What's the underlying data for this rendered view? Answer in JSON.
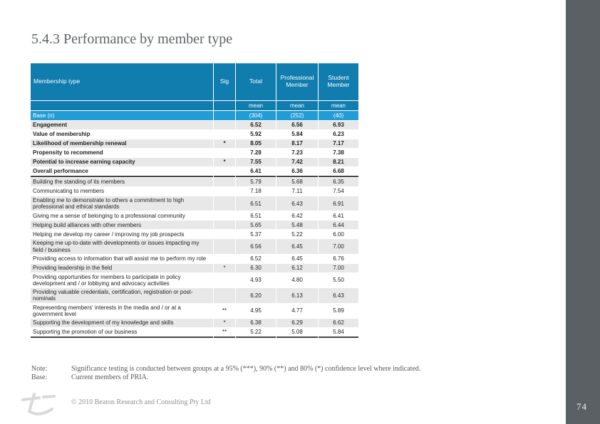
{
  "title": "5.4.3 Performance by member type",
  "colors": {
    "header_blue": "#107dae",
    "base_row_blue": "#229cd5",
    "stripe_gray": "#e8e8e8",
    "sidebar_gray": "#5b6065",
    "section_rule": "#454545"
  },
  "table": {
    "columns": [
      "Membership type",
      "Sig",
      "Total",
      "Professional Member",
      "Student Member"
    ],
    "mean_labels": [
      "mean",
      "mean",
      "mean"
    ],
    "base_row": {
      "label": "Base (n)",
      "values": [
        "(304)",
        "(252)",
        "(40)"
      ]
    },
    "rows": [
      {
        "label": "Engagement",
        "sig": "",
        "total": "6.52",
        "professional": "6.56",
        "student": "6.93",
        "group": "summary",
        "section_end": false
      },
      {
        "label": "Value of membership",
        "sig": "",
        "total": "5.92",
        "professional": "5.84",
        "student": "6.23",
        "group": "summary",
        "section_end": false
      },
      {
        "label": "Likelihood of membership renewal",
        "sig": "*",
        "total": "8.05",
        "professional": "8.17",
        "student": "7.17",
        "group": "summary",
        "section_end": false
      },
      {
        "label": "Propensity to recommend",
        "sig": "",
        "total": "7.28",
        "professional": "7.23",
        "student": "7.38",
        "group": "summary",
        "section_end": false
      },
      {
        "label": "Potential to increase earning capacity",
        "sig": "*",
        "total": "7.55",
        "professional": "7.42",
        "student": "8.21",
        "group": "summary",
        "section_end": false
      },
      {
        "label": "Overall performance",
        "sig": "",
        "total": "6.41",
        "professional": "6.36",
        "student": "6.68",
        "group": "summary",
        "section_end": true
      },
      {
        "label": "Building the standing of its members",
        "sig": "",
        "total": "5.79",
        "professional": "5.68",
        "student": "6.35",
        "group": "attribute",
        "section_end": false
      },
      {
        "label": "Communicating to members",
        "sig": "",
        "total": "7.18",
        "professional": "7.11",
        "student": "7.54",
        "group": "attribute",
        "section_end": false
      },
      {
        "label": "Enabling me to demonstrate to others a commitment to high professional and ethical standards",
        "sig": "",
        "total": "6.51",
        "professional": "6.43",
        "student": "6.91",
        "group": "attribute",
        "section_end": false
      },
      {
        "label": "Giving me a sense of belonging to a professional community",
        "sig": "",
        "total": "6.51",
        "professional": "6.42",
        "student": "6.41",
        "group": "attribute",
        "section_end": false
      },
      {
        "label": "Helping build alliances with other members",
        "sig": "",
        "total": "5.65",
        "professional": "5.48",
        "student": "6.44",
        "group": "attribute",
        "section_end": false
      },
      {
        "label": "Helping me develop my career / improving my job prospects",
        "sig": "",
        "total": "5.37",
        "professional": "5.22",
        "student": "6.00",
        "group": "attribute",
        "section_end": false
      },
      {
        "label": "Keeping me up-to-date with developments or issues impacting my field / business",
        "sig": "",
        "total": "6.56",
        "professional": "6.45",
        "student": "7.00",
        "group": "attribute",
        "section_end": false
      },
      {
        "label": "Providing access to information that will assist me to perform my role",
        "sig": "",
        "total": "6.52",
        "professional": "6.45",
        "student": "6.76",
        "group": "attribute",
        "section_end": false
      },
      {
        "label": "Providing leadership in the field",
        "sig": "*",
        "total": "6.30",
        "professional": "6.12",
        "student": "7.00",
        "group": "attribute",
        "section_end": false
      },
      {
        "label": "Providing opportunities for members to participate in policy development and / or lobbying and advocacy activities",
        "sig": "",
        "total": "4.93",
        "professional": "4.80",
        "student": "5.50",
        "group": "attribute",
        "section_end": false
      },
      {
        "label": "Providing valuable credentials, certification, registration or post-nominals",
        "sig": "",
        "total": "6.20",
        "professional": "6.13",
        "student": "6.43",
        "group": "attribute",
        "section_end": false
      },
      {
        "label": "Representing members' interests in the media and / or at a government level",
        "sig": "**",
        "total": "4.95",
        "professional": "4.77",
        "student": "5.89",
        "group": "attribute",
        "section_end": false
      },
      {
        "label": "Supporting the development of my knowledge and skills",
        "sig": "*",
        "total": "6.38",
        "professional": "6.29",
        "student": "6.62",
        "group": "attribute",
        "section_end": false
      },
      {
        "label": "Supporting the promotion of our business",
        "sig": "**",
        "total": "5.22",
        "professional": "5.08",
        "student": "5.84",
        "group": "attribute",
        "section_end": true
      }
    ]
  },
  "notes": {
    "note_label": "Note:",
    "note_text": "Significance testing is conducted between groups at a 95% (***), 90% (**) and 80% (*) confidence level where indicated.",
    "base_label": "Base:",
    "base_text": "Current members of PRIA."
  },
  "footer": {
    "copyright": "© 2010 Beaton Research and Consulting Pty Ltd",
    "page_number": "74"
  }
}
